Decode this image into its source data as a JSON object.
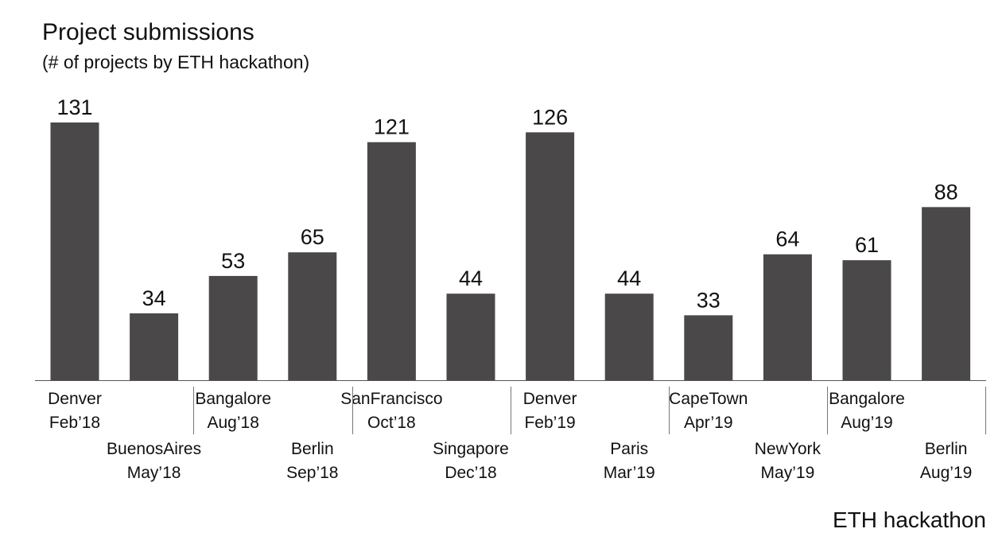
{
  "chart_data": {
    "type": "bar",
    "title": "Project submissions",
    "subtitle": "(# of projects by ETH hackathon)",
    "xlabel": "ETH hackathon",
    "ylabel": "",
    "ylim": [
      0,
      131
    ],
    "grid": false,
    "color": "#4a4848",
    "categories": [
      {
        "city": "Denver",
        "date": "Feb’18"
      },
      {
        "city": "BuenosAires",
        "date": "May’18"
      },
      {
        "city": "Bangalore",
        "date": "Aug’18"
      },
      {
        "city": "Berlin",
        "date": "Sep’18"
      },
      {
        "city": "SanFrancisco",
        "date": "Oct’18"
      },
      {
        "city": "Singapore",
        "date": "Dec’18"
      },
      {
        "city": "Denver",
        "date": "Feb’19"
      },
      {
        "city": "Paris",
        "date": "Mar’19"
      },
      {
        "city": "CapeTown",
        "date": "Apr’19"
      },
      {
        "city": "NewYork",
        "date": "May’19"
      },
      {
        "city": "Bangalore",
        "date": "Aug’19"
      },
      {
        "city": "Berlin",
        "date": "Aug’19"
      }
    ],
    "values": [
      131,
      34,
      53,
      65,
      121,
      44,
      126,
      44,
      33,
      64,
      61,
      88
    ]
  }
}
